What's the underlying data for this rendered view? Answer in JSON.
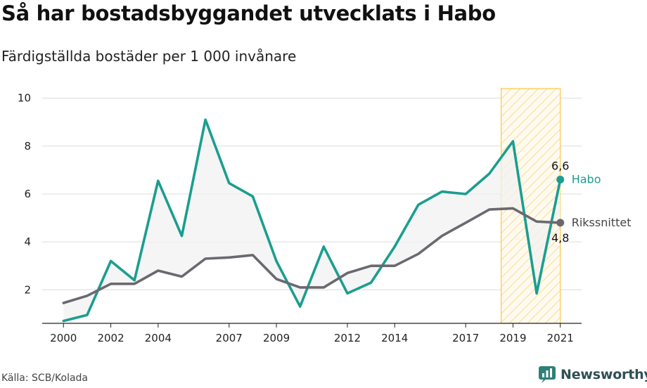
{
  "title": "Så har bostadsbyggandet utvecklats i Habo",
  "subtitle": "Färdigställda bostäder per 1 000 invånare",
  "source": "Källa: SCB/Kolada",
  "brand": {
    "name": "Newsworthy",
    "logo_icon": "newsworthy-logo-icon"
  },
  "colors": {
    "habo": "#1a9e8f",
    "riket": "#6b6870",
    "highlight": "#f5c84c",
    "band": "#f2f2f2",
    "grid": "#dcdcdc"
  },
  "chart_data": {
    "type": "line",
    "title": "Så har bostadsbyggandet utvecklats i Habo",
    "ylabel": "Färdigställda bostäder per 1 000 invånare",
    "x": [
      2000,
      2001,
      2002,
      2003,
      2004,
      2005,
      2006,
      2007,
      2008,
      2009,
      2010,
      2011,
      2012,
      2013,
      2014,
      2015,
      2016,
      2017,
      2018,
      2019,
      2020,
      2021
    ],
    "x_tick_labels": [
      "2000",
      "2002",
      "2004",
      "2007",
      "2009",
      "2012",
      "2014",
      "2017",
      "2019",
      "2021"
    ],
    "y_ticks": [
      2,
      4,
      6,
      8,
      10
    ],
    "ylim": [
      0.6,
      10.4
    ],
    "xlim": [
      1999.1,
      2021.9
    ],
    "grid": true,
    "highlight_period": [
      2018.5,
      2021
    ],
    "series": [
      {
        "name": "Habo",
        "values": [
          0.7,
          0.95,
          3.2,
          2.4,
          6.55,
          4.25,
          9.1,
          6.45,
          5.9,
          3.2,
          1.3,
          3.8,
          1.85,
          2.3,
          3.8,
          5.55,
          6.1,
          6.0,
          6.85,
          8.2,
          1.85,
          6.6
        ],
        "end_label": "6,6"
      },
      {
        "name": "Rikssnittet",
        "values": [
          1.45,
          1.75,
          2.25,
          2.25,
          2.8,
          2.55,
          3.3,
          3.35,
          3.45,
          2.45,
          2.1,
          2.1,
          2.7,
          3.0,
          3.0,
          3.5,
          4.25,
          4.8,
          5.35,
          5.4,
          4.85,
          4.8
        ],
        "end_label": "4,8"
      }
    ]
  }
}
